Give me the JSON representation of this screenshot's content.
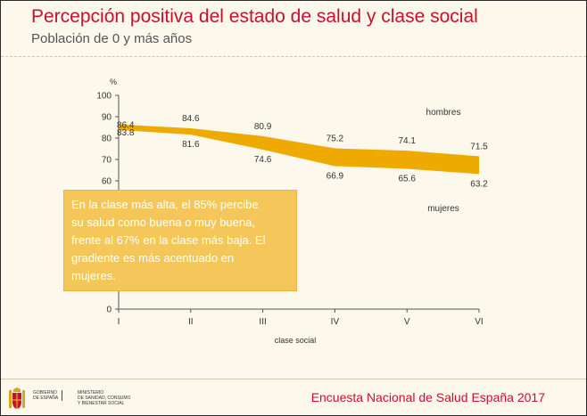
{
  "title": "Percepción positiva del estado de salud y clase social",
  "subtitle": "Población de 0 y más años",
  "callout": {
    "lines": [
      "En la clase más alta, el 85% percibe",
      "su salud como buena o muy buena,",
      "frente al 67% en la clase más baja. El",
      "gradiente es más acentuado en",
      "mujeres."
    ]
  },
  "footer": {
    "text": "Encuesta Nacional de Salud España 2017",
    "gov_lines": [
      "Gobierno",
      "de España"
    ],
    "ministry_lines": [
      "Ministerio",
      "de Sanidad, Consumo",
      "y Bienestar Social"
    ]
  },
  "colors": {
    "band": "#eeaa00",
    "title": "#c8102e",
    "callout": "#f5c75b"
  },
  "chart_data": {
    "type": "area",
    "title": "Percepción positiva del estado de salud y clase social",
    "subtitle": "Población de 0 y más años",
    "xlabel": "clase social",
    "ylabel": "%",
    "categories": [
      "I",
      "II",
      "III",
      "IV",
      "V",
      "VI"
    ],
    "ylim": [
      0,
      100
    ],
    "yticks": [
      0,
      10,
      20,
      30,
      40,
      50,
      60,
      70,
      80,
      90,
      100
    ],
    "grid": false,
    "series": [
      {
        "name": "hombres",
        "values": [
          86.4,
          84.6,
          80.9,
          75.2,
          74.1,
          71.5
        ],
        "labels": [
          "86.4",
          "84.6",
          "80.9",
          "75.2",
          "74.1",
          "71.5"
        ]
      },
      {
        "name": "mujeres",
        "values": [
          83.8,
          81.6,
          74.6,
          66.9,
          65.6,
          63.2
        ],
        "labels": [
          "83.8",
          "81.6",
          "74.6",
          "66.9",
          "65.6",
          "63.2"
        ]
      }
    ]
  }
}
